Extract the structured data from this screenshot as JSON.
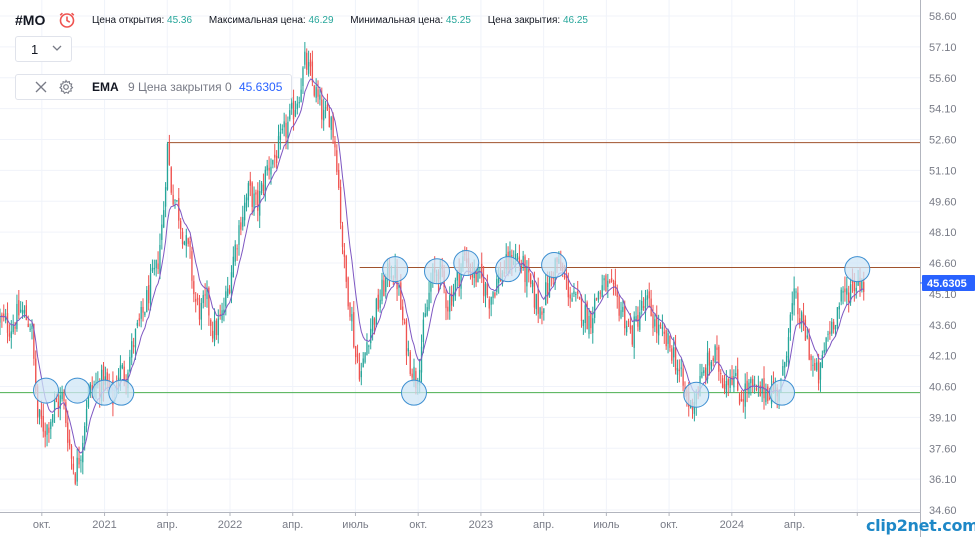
{
  "header": {
    "symbol": "#MO",
    "ohlc": {
      "open_label": "Цена открытия:",
      "open_value": "45.36",
      "high_label": "Максимальная цена:",
      "high_value": "46.29",
      "low_label": "Минимальная цена:",
      "low_value": "45.25",
      "close_label": "Цена закрытия:",
      "close_value": "46.25"
    },
    "interval": "1",
    "indicator": {
      "name": "EMA",
      "params": "9 Цена закрытия 0",
      "value": "45.6305"
    }
  },
  "logo_text": "clip2net.com",
  "colors": {
    "up": "#26a69a",
    "down": "#ef5350",
    "ema": "#7e57c2",
    "support": "#4caf50",
    "resistance": "#a0522d",
    "marker_fill": "#cfe5f5",
    "marker_stroke": "#3d8fd1",
    "price_label": "#2962ff"
  },
  "chart_data": {
    "type": "candlestick",
    "y_ticks": [
      "58.60",
      "57.10",
      "55.60",
      "54.10",
      "52.60",
      "51.10",
      "49.60",
      "48.10",
      "46.60",
      "45.10",
      "43.60",
      "42.10",
      "40.60",
      "39.10",
      "37.60",
      "36.10",
      "34.60"
    ],
    "y_range": [
      34.6,
      58.6
    ],
    "x_ticks": [
      {
        "t": 0.5,
        "label": "окт."
      },
      {
        "t": 3.5,
        "label": "2021"
      },
      {
        "t": 6.5,
        "label": "апр."
      },
      {
        "t": 9.5,
        "label": "2022"
      },
      {
        "t": 12.5,
        "label": "апр."
      },
      {
        "t": 15.5,
        "label": "июль"
      },
      {
        "t": 18.5,
        "label": "окт."
      },
      {
        "t": 21.5,
        "label": "2023"
      },
      {
        "t": 24.5,
        "label": "апр."
      },
      {
        "t": 27.5,
        "label": "июль"
      },
      {
        "t": 30.5,
        "label": "окт."
      },
      {
        "t": 33.5,
        "label": "2024"
      },
      {
        "t": 36.5,
        "label": "апр."
      },
      {
        "t": 39.5,
        "label": ""
      }
    ],
    "x_range": [
      -1.5,
      42.5
    ],
    "last_price": "45.6305",
    "levels": [
      {
        "kind": "resistance",
        "y": 52.45,
        "t_start": 6.5,
        "t_end": 42.5
      },
      {
        "kind": "resistance",
        "y": 46.38,
        "t_start": 15.7,
        "t_end": 42.5
      },
      {
        "kind": "support",
        "y": 40.3,
        "t_start": -1.5,
        "t_end": 42.5
      }
    ],
    "markers": [
      {
        "t": 0.7,
        "y": 40.4
      },
      {
        "t": 2.2,
        "y": 40.4
      },
      {
        "t": 3.5,
        "y": 40.3
      },
      {
        "t": 4.3,
        "y": 40.3
      },
      {
        "t": 18.3,
        "y": 40.3
      },
      {
        "t": 17.4,
        "y": 46.3
      },
      {
        "t": 19.4,
        "y": 46.2
      },
      {
        "t": 20.8,
        "y": 46.6
      },
      {
        "t": 22.8,
        "y": 46.3
      },
      {
        "t": 25.0,
        "y": 46.5
      },
      {
        "t": 31.8,
        "y": 40.2
      },
      {
        "t": 35.9,
        "y": 40.3
      },
      {
        "t": 39.5,
        "y": 46.3
      }
    ],
    "path": [
      [
        -1.5,
        43.8
      ],
      [
        -1.0,
        43.5
      ],
      [
        -0.5,
        44.3
      ],
      [
        0.0,
        43.6
      ],
      [
        0.3,
        39.1
      ],
      [
        0.7,
        38.5
      ],
      [
        1.1,
        39.6
      ],
      [
        1.5,
        40.1
      ],
      [
        1.9,
        37.2
      ],
      [
        2.1,
        36.4
      ],
      [
        2.4,
        37.7
      ],
      [
        2.7,
        40.3
      ],
      [
        3.1,
        40.6
      ],
      [
        3.5,
        40.9
      ],
      [
        3.9,
        40.0
      ],
      [
        4.2,
        41.4
      ],
      [
        4.5,
        41.2
      ],
      [
        4.9,
        42.8
      ],
      [
        5.3,
        44.0
      ],
      [
        5.7,
        45.5
      ],
      [
        6.0,
        46.3
      ],
      [
        6.3,
        48.8
      ],
      [
        6.5,
        52.3
      ],
      [
        6.7,
        50.2
      ],
      [
        7.0,
        49.3
      ],
      [
        7.3,
        47.8
      ],
      [
        7.6,
        46.8
      ],
      [
        7.8,
        44.8
      ],
      [
        8.1,
        44.2
      ],
      [
        8.4,
        44.8
      ],
      [
        8.7,
        43.2
      ],
      [
        9.1,
        43.9
      ],
      [
        9.4,
        45.3
      ],
      [
        9.7,
        47.1
      ],
      [
        10.0,
        48.7
      ],
      [
        10.4,
        50.1
      ],
      [
        10.8,
        49.3
      ],
      [
        11.3,
        51.3
      ],
      [
        11.7,
        51.8
      ],
      [
        12.1,
        52.9
      ],
      [
        12.4,
        53.6
      ],
      [
        12.8,
        54.9
      ],
      [
        13.1,
        56.4
      ],
      [
        13.4,
        55.5
      ],
      [
        13.7,
        54.5
      ],
      [
        14.0,
        53.6
      ],
      [
        14.3,
        53.9
      ],
      [
        14.6,
        51.8
      ],
      [
        14.8,
        48.7
      ],
      [
        15.0,
        46.0
      ],
      [
        15.3,
        44.2
      ],
      [
        15.5,
        42.1
      ],
      [
        15.8,
        41.2
      ],
      [
        16.1,
        43.1
      ],
      [
        16.4,
        44.0
      ],
      [
        16.8,
        45.3
      ],
      [
        17.2,
        46.4
      ],
      [
        17.5,
        45.7
      ],
      [
        17.8,
        43.4
      ],
      [
        18.1,
        41.9
      ],
      [
        18.4,
        40.9
      ],
      [
        18.7,
        42.9
      ],
      [
        19.1,
        45.6
      ],
      [
        19.5,
        46.4
      ],
      [
        19.9,
        44.6
      ],
      [
        20.3,
        45.6
      ],
      [
        20.7,
        46.9
      ],
      [
        21.1,
        46.1
      ],
      [
        21.5,
        45.8
      ],
      [
        21.9,
        44.9
      ],
      [
        22.3,
        45.8
      ],
      [
        22.7,
        46.4
      ],
      [
        23.1,
        47.0
      ],
      [
        23.5,
        46.4
      ],
      [
        23.9,
        45.3
      ],
      [
        24.3,
        44.3
      ],
      [
        24.7,
        45.4
      ],
      [
        25.1,
        46.7
      ],
      [
        25.5,
        45.8
      ],
      [
        25.9,
        44.8
      ],
      [
        26.3,
        44.4
      ],
      [
        26.7,
        43.8
      ],
      [
        27.1,
        45.2
      ],
      [
        27.5,
        45.5
      ],
      [
        27.9,
        44.9
      ],
      [
        28.3,
        44.2
      ],
      [
        28.7,
        43.0
      ],
      [
        29.1,
        44.3
      ],
      [
        29.5,
        44.6
      ],
      [
        29.9,
        43.4
      ],
      [
        30.3,
        42.8
      ],
      [
        30.7,
        42.3
      ],
      [
        31.1,
        40.8
      ],
      [
        31.5,
        39.6
      ],
      [
        31.9,
        40.5
      ],
      [
        32.3,
        41.6
      ],
      [
        32.7,
        42.1
      ],
      [
        33.1,
        40.9
      ],
      [
        33.5,
        41.3
      ],
      [
        33.9,
        40.1
      ],
      [
        34.3,
        40.6
      ],
      [
        34.7,
        40.2
      ],
      [
        35.1,
        40.5
      ],
      [
        35.5,
        40.4
      ],
      [
        35.9,
        40.7
      ],
      [
        36.2,
        43.4
      ],
      [
        36.5,
        44.9
      ],
      [
        36.8,
        43.7
      ],
      [
        37.1,
        42.9
      ],
      [
        37.4,
        41.4
      ],
      [
        37.7,
        41.0
      ],
      [
        38.0,
        42.9
      ],
      [
        38.4,
        44.0
      ],
      [
        38.8,
        44.9
      ],
      [
        39.2,
        45.5
      ],
      [
        39.6,
        45.8
      ],
      [
        39.9,
        45.6
      ]
    ]
  }
}
